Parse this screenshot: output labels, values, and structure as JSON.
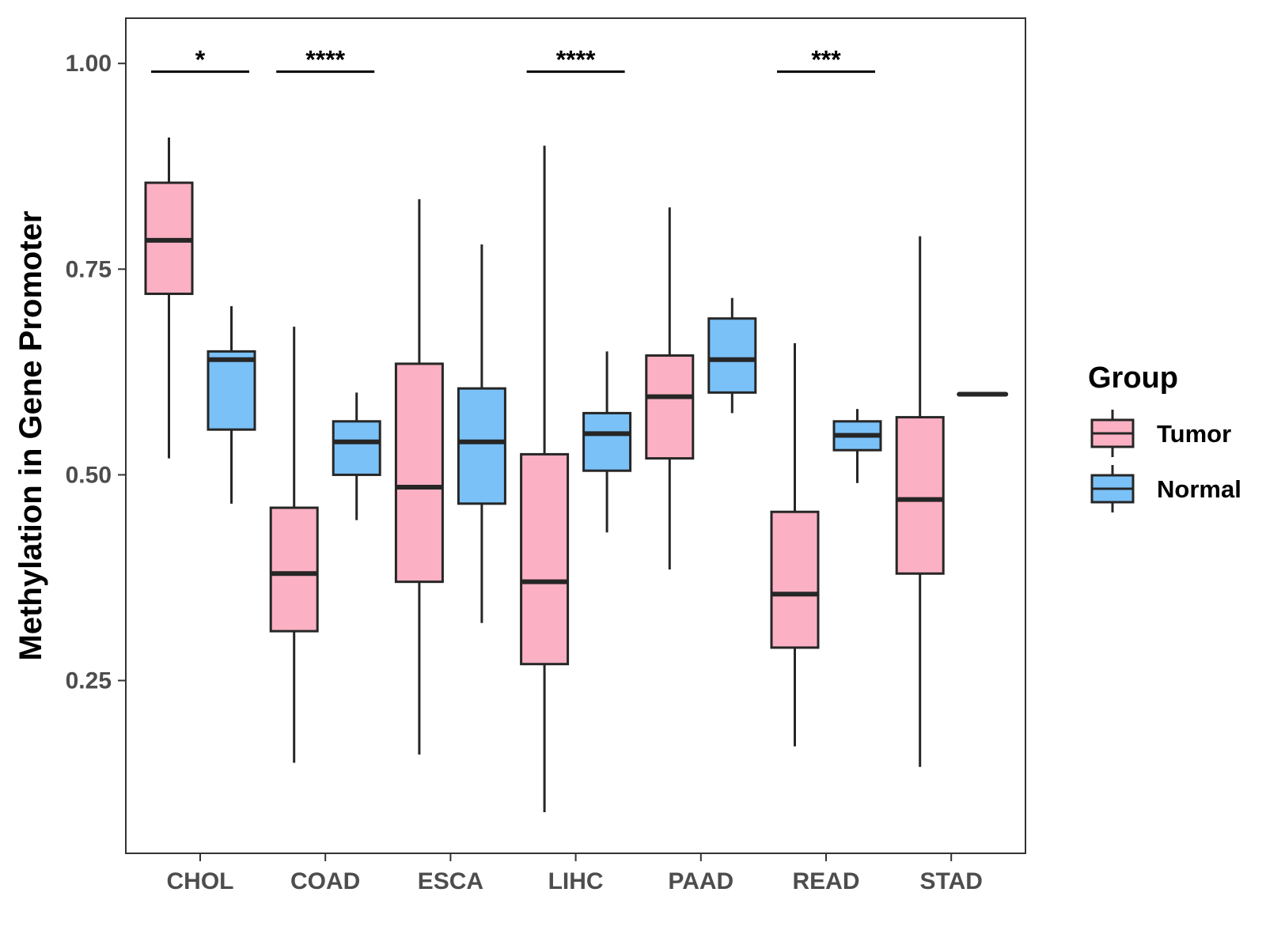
{
  "chart_data": {
    "type": "boxplot",
    "title": "",
    "xlabel": "",
    "ylabel": "Methylation in Gene Promoter",
    "ylim": [
      0.04,
      1.055
    ],
    "yticks": [
      0.25,
      0.5,
      0.75,
      1.0
    ],
    "ytick_labels": [
      "0.25",
      "0.50",
      "0.75",
      "1.00"
    ],
    "categories": [
      "CHOL",
      "COAD",
      "ESCA",
      "LIHC",
      "PAAD",
      "READ",
      "STAD"
    ],
    "legend": {
      "title": "Group",
      "position": "right",
      "entries": [
        {
          "name": "Tumor",
          "color": "#FBB1C3"
        },
        {
          "name": "Normal",
          "color": "#7AC1F8"
        }
      ]
    },
    "series": [
      {
        "name": "Tumor",
        "color": "#FBB1C3",
        "boxes": [
          {
            "category": "CHOL",
            "whisker_low": 0.52,
            "q1": 0.72,
            "median": 0.785,
            "q3": 0.855,
            "whisker_high": 0.91
          },
          {
            "category": "COAD",
            "whisker_low": 0.15,
            "q1": 0.31,
            "median": 0.38,
            "q3": 0.46,
            "whisker_high": 0.68
          },
          {
            "category": "ESCA",
            "whisker_low": 0.16,
            "q1": 0.37,
            "median": 0.485,
            "q3": 0.635,
            "whisker_high": 0.835
          },
          {
            "category": "LIHC",
            "whisker_low": 0.09,
            "q1": 0.27,
            "median": 0.37,
            "q3": 0.525,
            "whisker_high": 0.9
          },
          {
            "category": "PAAD",
            "whisker_low": 0.385,
            "q1": 0.52,
            "median": 0.595,
            "q3": 0.645,
            "whisker_high": 0.825
          },
          {
            "category": "READ",
            "whisker_low": 0.17,
            "q1": 0.29,
            "median": 0.355,
            "q3": 0.455,
            "whisker_high": 0.66
          },
          {
            "category": "STAD",
            "whisker_low": 0.145,
            "q1": 0.38,
            "median": 0.47,
            "q3": 0.57,
            "whisker_high": 0.79
          }
        ]
      },
      {
        "name": "Normal",
        "color": "#7AC1F8",
        "boxes": [
          {
            "category": "CHOL",
            "whisker_low": 0.465,
            "q1": 0.555,
            "median": 0.64,
            "q3": 0.65,
            "whisker_high": 0.705
          },
          {
            "category": "COAD",
            "whisker_low": 0.445,
            "q1": 0.5,
            "median": 0.54,
            "q3": 0.565,
            "whisker_high": 0.6
          },
          {
            "category": "ESCA",
            "whisker_low": 0.32,
            "q1": 0.465,
            "median": 0.54,
            "q3": 0.605,
            "whisker_high": 0.78
          },
          {
            "category": "LIHC",
            "whisker_low": 0.43,
            "q1": 0.505,
            "median": 0.55,
            "q3": 0.575,
            "whisker_high": 0.65
          },
          {
            "category": "PAAD",
            "whisker_low": 0.575,
            "q1": 0.6,
            "median": 0.64,
            "q3": 0.69,
            "whisker_high": 0.715
          },
          {
            "category": "READ",
            "whisker_low": 0.49,
            "q1": 0.53,
            "median": 0.548,
            "q3": 0.565,
            "whisker_high": 0.58
          },
          {
            "category": "STAD",
            "whisker_low": 0.598,
            "q1": 0.598,
            "median": 0.598,
            "q3": 0.598,
            "whisker_high": 0.598
          }
        ]
      }
    ],
    "annotations": [
      {
        "category": "CHOL",
        "label": "*",
        "y": 0.99
      },
      {
        "category": "COAD",
        "label": "****",
        "y": 0.99
      },
      {
        "category": "LIHC",
        "label": "****",
        "y": 0.99
      },
      {
        "category": "READ",
        "label": "***",
        "y": 0.99
      }
    ]
  }
}
